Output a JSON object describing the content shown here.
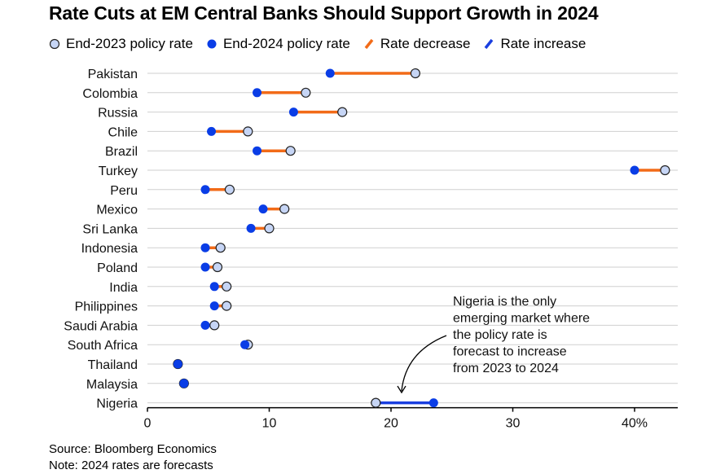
{
  "title": "Rate Cuts at EM Central Banks Should Support Growth in 2024",
  "legend": {
    "end2023": "End-2023 policy rate",
    "end2024": "End-2024 policy rate",
    "decrease": "Rate decrease",
    "increase": "Rate increase"
  },
  "colors": {
    "end2023_fill": "#c6d5f5",
    "end2023_stroke": "#222222",
    "end2024": "#0a3de6",
    "decrease": "#f26b18",
    "increase": "#1a3fe0",
    "grid": "#cfcfcf"
  },
  "annotation": {
    "lines": [
      "Nigeria is the only",
      "emerging market where",
      "the policy rate is",
      "forecast to increase",
      "from 2023 to 2024"
    ]
  },
  "footer": {
    "source": "Source: Bloomberg Economics",
    "note": "Note: 2024 rates are forecasts"
  },
  "chart_data": {
    "type": "dumbbell",
    "title": "Rate Cuts at EM Central Banks Should Support Growth in 2024",
    "xlim": [
      0,
      43
    ],
    "x_ticks": [
      0,
      10,
      20,
      30,
      40
    ],
    "x_tick_labels": [
      "0",
      "10",
      "20",
      "30",
      "40%"
    ],
    "grid": true,
    "categories": [
      "Pakistan",
      "Colombia",
      "Russia",
      "Chile",
      "Brazil",
      "Turkey",
      "Peru",
      "Mexico",
      "Sri Lanka",
      "Indonesia",
      "Poland",
      "India",
      "Philippines",
      "Saudi Arabia",
      "South Africa",
      "Thailand",
      "Malaysia",
      "Nigeria"
    ],
    "series": [
      {
        "name": "End-2023 policy rate",
        "values": [
          22,
          13,
          16,
          8.25,
          11.75,
          42.5,
          6.75,
          11.25,
          10,
          6,
          5.75,
          6.5,
          6.5,
          5.5,
          8.25,
          2.5,
          3,
          18.75
        ]
      },
      {
        "name": "End-2024 policy rate",
        "values": [
          15,
          9,
          12,
          5.25,
          9,
          40,
          4.75,
          9.5,
          8.5,
          4.75,
          4.75,
          5.5,
          5.5,
          4.75,
          8,
          2.5,
          3,
          23.5
        ]
      }
    ]
  }
}
